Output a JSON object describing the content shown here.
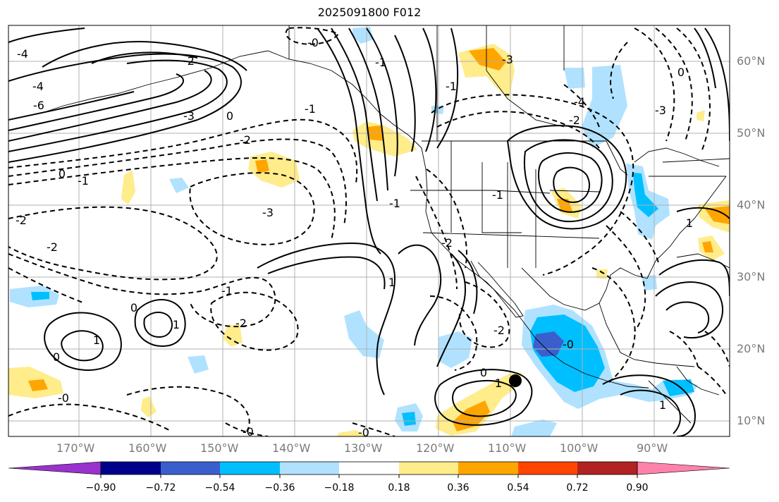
{
  "title": "2025091800 F012",
  "map": {
    "latitude_labels": [
      "60°N",
      "50°N",
      "40°N",
      "30°N",
      "20°N",
      "10°N"
    ],
    "longitude_labels": [
      "170°W",
      "160°W",
      "150°W",
      "140°W",
      "130°W",
      "120°W",
      "110°W",
      "100°W",
      "90°W"
    ],
    "contour_labels": [
      "-4",
      "-2",
      "-4",
      "-6",
      "-3",
      "0",
      "-2",
      "-1",
      "0",
      "-1",
      "-3",
      "-2",
      "-2",
      "-0",
      "-1",
      "-3",
      "-1",
      "-4",
      "-2",
      "-3",
      "-1",
      "-2",
      "0",
      "1",
      "0",
      "1",
      "-0",
      "-2",
      "0",
      "1",
      "1",
      "-0",
      "-2",
      "-0",
      "-1",
      "0",
      "-1",
      "1",
      "1",
      "-0"
    ],
    "storm_marker": {
      "lon": -109.0,
      "lat": 15.6,
      "name": "tropical cyclone position"
    }
  },
  "colorbar": {
    "ticks": [
      "−0.90",
      "−0.72",
      "−0.54",
      "−0.36",
      "−0.18",
      "0.18",
      "0.36",
      "0.54",
      "0.72",
      "0.90"
    ],
    "colors": {
      "lt_-0.90": "#9a32cd",
      "-0.90_-0.72": "#00008b",
      "-0.72_-0.54": "#3a5fcd",
      "-0.54_-0.36": "#00bfff",
      "-0.36_-0.18": "#b0e2ff",
      "-0.18_0.18": "#ffffff",
      "0.18_0.36": "#ffec8b",
      "0.36_0.54": "#ffa500",
      "0.54_0.72": "#ff4500",
      "0.72_0.90": "#b22222",
      "gt_0.90": "#ff82ab"
    }
  }
}
